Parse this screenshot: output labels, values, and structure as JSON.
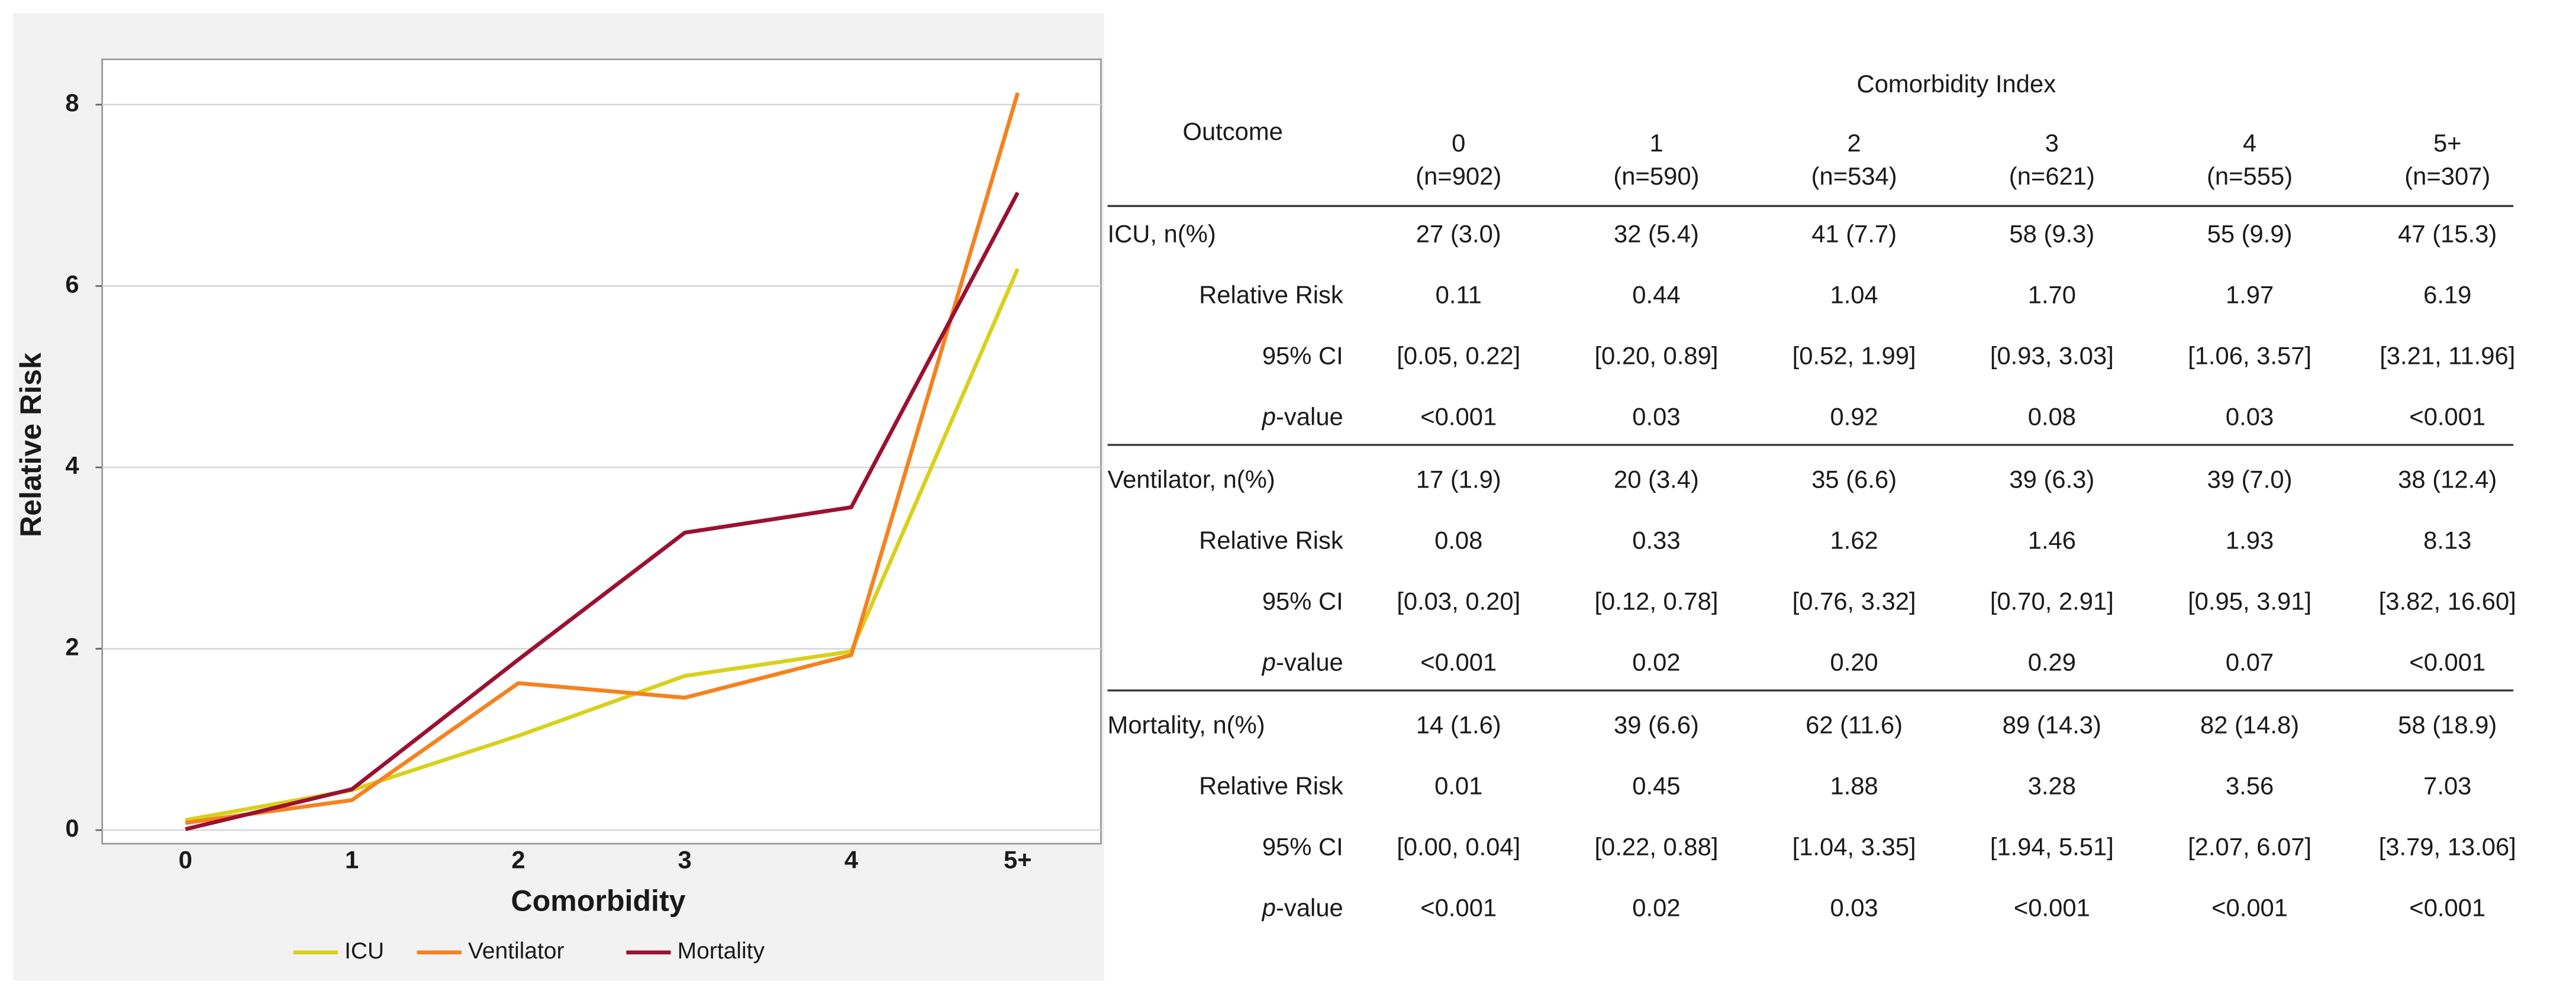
{
  "chart_data": {
    "type": "line",
    "xlabel": "Comorbidity",
    "ylabel": "Relative Risk",
    "categories": [
      "0",
      "1",
      "2",
      "3",
      "4",
      "5+"
    ],
    "series": [
      {
        "name": "ICU",
        "color": "#d8d11c",
        "values": [
          0.11,
          0.44,
          1.04,
          1.7,
          1.97,
          6.19
        ]
      },
      {
        "name": "Ventilator",
        "color": "#f5821f",
        "values": [
          0.08,
          0.33,
          1.62,
          1.46,
          1.93,
          8.13
        ]
      },
      {
        "name": "Mortality",
        "color": "#9b1131",
        "values": [
          0.01,
          0.45,
          1.88,
          3.28,
          3.56,
          7.03
        ]
      }
    ],
    "ylim": [
      -0.15,
      8.5
    ],
    "yticks": [
      0,
      2,
      4,
      6,
      8
    ],
    "grid": true,
    "legend": "bottom"
  },
  "table": {
    "title": "Comorbidity Index",
    "header": "Outcome",
    "columns": [
      {
        "label": "0",
        "n": "(n=902)"
      },
      {
        "label": "1",
        "n": "(n=590)"
      },
      {
        "label": "2",
        "n": "(n=534)"
      },
      {
        "label": "3",
        "n": "(n=621)"
      },
      {
        "label": "4",
        "n": "(n=555)"
      },
      {
        "label": "5+",
        "n": "(n=307)"
      }
    ],
    "groups": [
      {
        "rows": [
          {
            "label": "ICU,  n(%)",
            "cells": [
              "27 (3.0)",
              "32 (5.4)",
              "41 (7.7)",
              "58 (9.3)",
              "55 (9.9)",
              "47 (15.3)"
            ]
          },
          {
            "label": "Relative Risk",
            "cells": [
              "0.11",
              "0.44",
              "1.04",
              "1.70",
              "1.97",
              "6.19"
            ]
          },
          {
            "label": "95% CI",
            "cells": [
              "[0.05, 0.22]",
              "[0.20, 0.89]",
              "[0.52, 1.99]",
              "[0.93, 3.03]",
              "[1.06, 3.57]",
              "[3.21, 11.96]"
            ]
          },
          {
            "label": "p-value",
            "cells": [
              "<0.001",
              "0.03",
              "0.92",
              "0.08",
              "0.03",
              "<0.001"
            ]
          }
        ]
      },
      {
        "rows": [
          {
            "label": "Ventilator, n(%)",
            "cells": [
              "17 (1.9)",
              "20 (3.4)",
              "35 (6.6)",
              "39 (6.3)",
              "39 (7.0)",
              "38 (12.4)"
            ]
          },
          {
            "label": "Relative Risk",
            "cells": [
              "0.08",
              "0.33",
              "1.62",
              "1.46",
              "1.93",
              "8.13"
            ]
          },
          {
            "label": "95% CI",
            "cells": [
              "[0.03, 0.20]",
              "[0.12, 0.78]",
              "[0.76, 3.32]",
              "[0.70, 2.91]",
              "[0.95, 3.91]",
              "[3.82, 16.60]"
            ]
          },
          {
            "label": "p-value",
            "cells": [
              "<0.001",
              "0.02",
              "0.20",
              "0.29",
              "0.07",
              "<0.001"
            ]
          }
        ]
      },
      {
        "rows": [
          {
            "label": "Mortality, n(%)",
            "cells": [
              "14 (1.6)",
              "39 (6.6)",
              "62 (11.6)",
              "89 (14.3)",
              "82 (14.8)",
              "58 (18.9)"
            ]
          },
          {
            "label": "Relative Risk",
            "cells": [
              "0.01",
              "0.45",
              "1.88",
              "3.28",
              "3.56",
              "7.03"
            ]
          },
          {
            "label": "95% CI",
            "cells": [
              "[0.00, 0.04]",
              "[0.22, 0.88]",
              "[1.04, 3.35]",
              "[1.94, 5.51]",
              "[2.07, 6.07]",
              "[3.79, 13.06]"
            ]
          },
          {
            "label": "p-value",
            "cells": [
              "<0.001",
              "0.02",
              "0.03",
              "<0.001",
              "<0.001",
              "<0.001"
            ]
          }
        ]
      }
    ]
  }
}
